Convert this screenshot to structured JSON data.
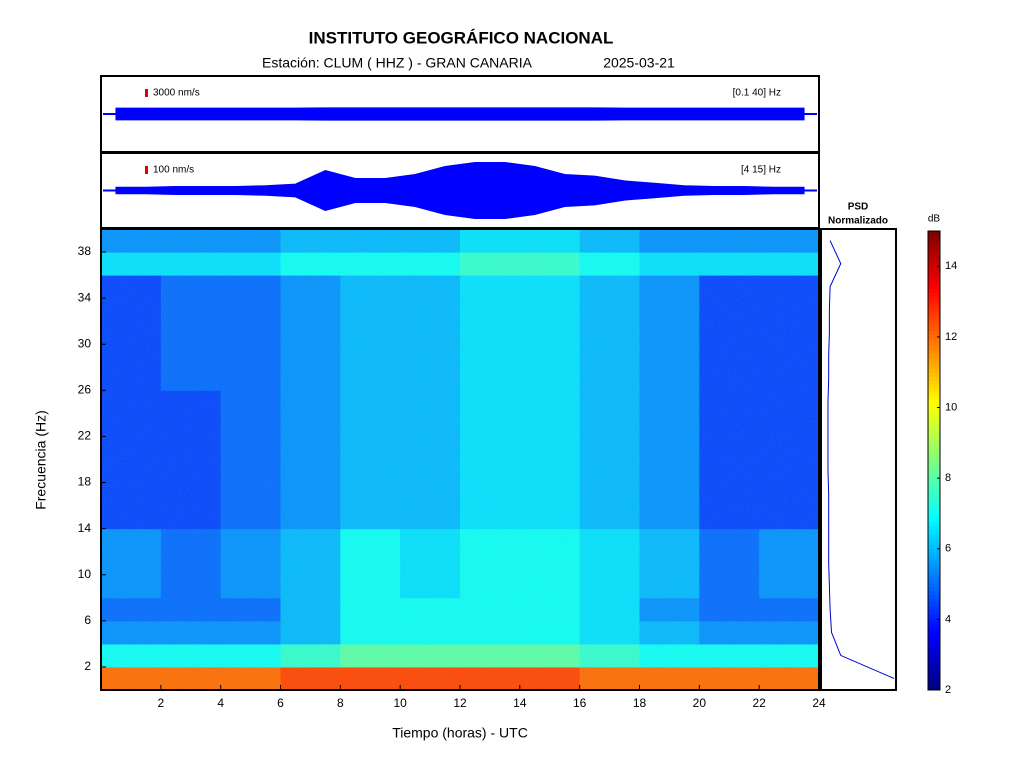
{
  "chart_data": {
    "type": "spectrogram",
    "title": "INSTITUTO GEOGRÁFICO NACIONAL",
    "station": "Estación:  CLUM ( HHZ ) - GRAN CANARIA",
    "date": "2025-03-21",
    "xlabel": "Tiempo (horas) - UTC",
    "ylabel": "Frecuencia  (Hz)",
    "xlim": [
      0,
      24
    ],
    "xticks": [
      2,
      4,
      6,
      8,
      10,
      12,
      14,
      16,
      18,
      20,
      22,
      24
    ],
    "ylim": [
      0,
      40
    ],
    "yticks": [
      2,
      6,
      10,
      14,
      18,
      22,
      26,
      30,
      34,
      38
    ],
    "time_bins": [
      0,
      2,
      4,
      6,
      8,
      10,
      12,
      14,
      16,
      18,
      20,
      22,
      24
    ],
    "freq_bins": [
      0,
      2,
      4,
      6,
      8,
      10,
      12,
      14,
      16,
      18,
      20,
      22,
      24,
      26,
      28,
      30,
      32,
      34,
      36,
      38,
      40
    ],
    "values": [
      [
        12,
        12,
        12,
        12.5,
        12.5,
        12.5,
        12.5,
        12.5,
        12,
        12,
        12,
        12
      ],
      [
        7,
        7,
        7,
        7.5,
        8,
        8,
        8,
        8,
        7.5,
        7,
        7,
        7
      ],
      [
        5.5,
        5.5,
        5.5,
        6,
        7,
        7,
        7,
        7,
        6.5,
        6,
        5.5,
        5.5
      ],
      [
        5,
        5,
        5,
        6,
        7,
        7,
        7,
        7,
        6.5,
        5.5,
        5,
        5
      ],
      [
        5.5,
        5,
        5.5,
        6,
        7,
        6.5,
        7,
        7,
        6.5,
        6,
        5,
        5.5
      ],
      [
        5.5,
        5,
        5.5,
        6,
        7,
        6.5,
        7,
        7,
        6.5,
        6,
        5,
        5.5
      ],
      [
        5.5,
        5,
        5.5,
        6,
        7,
        6.5,
        7,
        7,
        6.5,
        6,
        5,
        5.5
      ],
      [
        4.5,
        4.5,
        5,
        5.5,
        6,
        6,
        6.5,
        6.5,
        6,
        5.5,
        4.5,
        4.5
      ],
      [
        4.5,
        4.5,
        5,
        5.5,
        6,
        6,
        6.5,
        6.5,
        6,
        5.5,
        4.5,
        4.5
      ],
      [
        4.5,
        4.5,
        5,
        5.5,
        6,
        6,
        6.5,
        6.5,
        6,
        5.5,
        4.5,
        4.5
      ],
      [
        4.5,
        4.5,
        5,
        5.5,
        6,
        6,
        6.5,
        6.5,
        6,
        5.5,
        4.5,
        4.5
      ],
      [
        4.5,
        4.5,
        5,
        5.5,
        6,
        6,
        6.5,
        6.5,
        6,
        5.5,
        4.5,
        4.5
      ],
      [
        4.5,
        4.5,
        5,
        5.5,
        6,
        6,
        6.5,
        6.5,
        6,
        5.5,
        4.5,
        4.5
      ],
      [
        4.5,
        5,
        5,
        5.5,
        6,
        6,
        6.5,
        6.5,
        6,
        5.5,
        4.5,
        4.5
      ],
      [
        4.5,
        5,
        5,
        5.5,
        6,
        6,
        6.5,
        6.5,
        6,
        5.5,
        4.5,
        4.5
      ],
      [
        4.5,
        5,
        5,
        5.5,
        6,
        6,
        6.5,
        6.5,
        6,
        5.5,
        4.5,
        4.5
      ],
      [
        4.5,
        5,
        5,
        5.5,
        6,
        6,
        6.5,
        6.5,
        6,
        5.5,
        4.5,
        4.5
      ],
      [
        4.5,
        5,
        5,
        5.5,
        6,
        6,
        6.5,
        6.5,
        6,
        5.5,
        4.5,
        4.5
      ],
      [
        6.5,
        6.5,
        6.5,
        7,
        7,
        7,
        7.5,
        7.5,
        7,
        6.5,
        6.5,
        6.5
      ],
      [
        5.5,
        5.5,
        5.5,
        6,
        6,
        6,
        6.5,
        6.5,
        6,
        5.5,
        5.5,
        5.5
      ]
    ],
    "colorbar": {
      "label": "dB",
      "lim": [
        2,
        15
      ],
      "ticks": [
        2,
        4,
        6,
        8,
        10,
        12,
        14
      ]
    },
    "psd": {
      "label": [
        "PSD",
        "Normalizado"
      ],
      "color": "#0000cc",
      "values": [
        1.0,
        0.25,
        0.12,
        0.1,
        0.09,
        0.08,
        0.08,
        0.08,
        0.08,
        0.07,
        0.07,
        0.07,
        0.07,
        0.08,
        0.08,
        0.09,
        0.09,
        0.1,
        0.25,
        0.1
      ]
    },
    "trace_x": [
      0.5,
      1.5,
      2.5,
      3.5,
      4.5,
      5.5,
      6.5,
      7.5,
      8.5,
      9.5,
      10.5,
      11.5,
      12.5,
      13.5,
      14.5,
      15.5,
      16.5,
      17.5,
      18.5,
      19.5,
      20.5,
      21.5,
      22.5,
      23.5
    ],
    "traces": [
      {
        "scale": {
          "value": 3000,
          "label": "3000 nm/s"
        },
        "band": "[0.1 40] Hz",
        "color": "#0000ff",
        "amplitude": [
          2200,
          2200,
          2200,
          2200,
          2200,
          2200,
          2200,
          2300,
          2300,
          2300,
          2300,
          2300,
          2300,
          2300,
          2300,
          2300,
          2300,
          2200,
          2200,
          2200,
          2200,
          2200,
          2200,
          2200
        ]
      },
      {
        "scale": {
          "value": 100,
          "label": "100 nm/s"
        },
        "band": "[4 15] Hz",
        "color": "#0000ff",
        "amplitude": [
          40,
          40,
          50,
          50,
          50,
          60,
          80,
          250,
          150,
          150,
          200,
          300,
          350,
          350,
          300,
          200,
          180,
          120,
          90,
          60,
          50,
          50,
          40,
          40
        ]
      }
    ]
  }
}
